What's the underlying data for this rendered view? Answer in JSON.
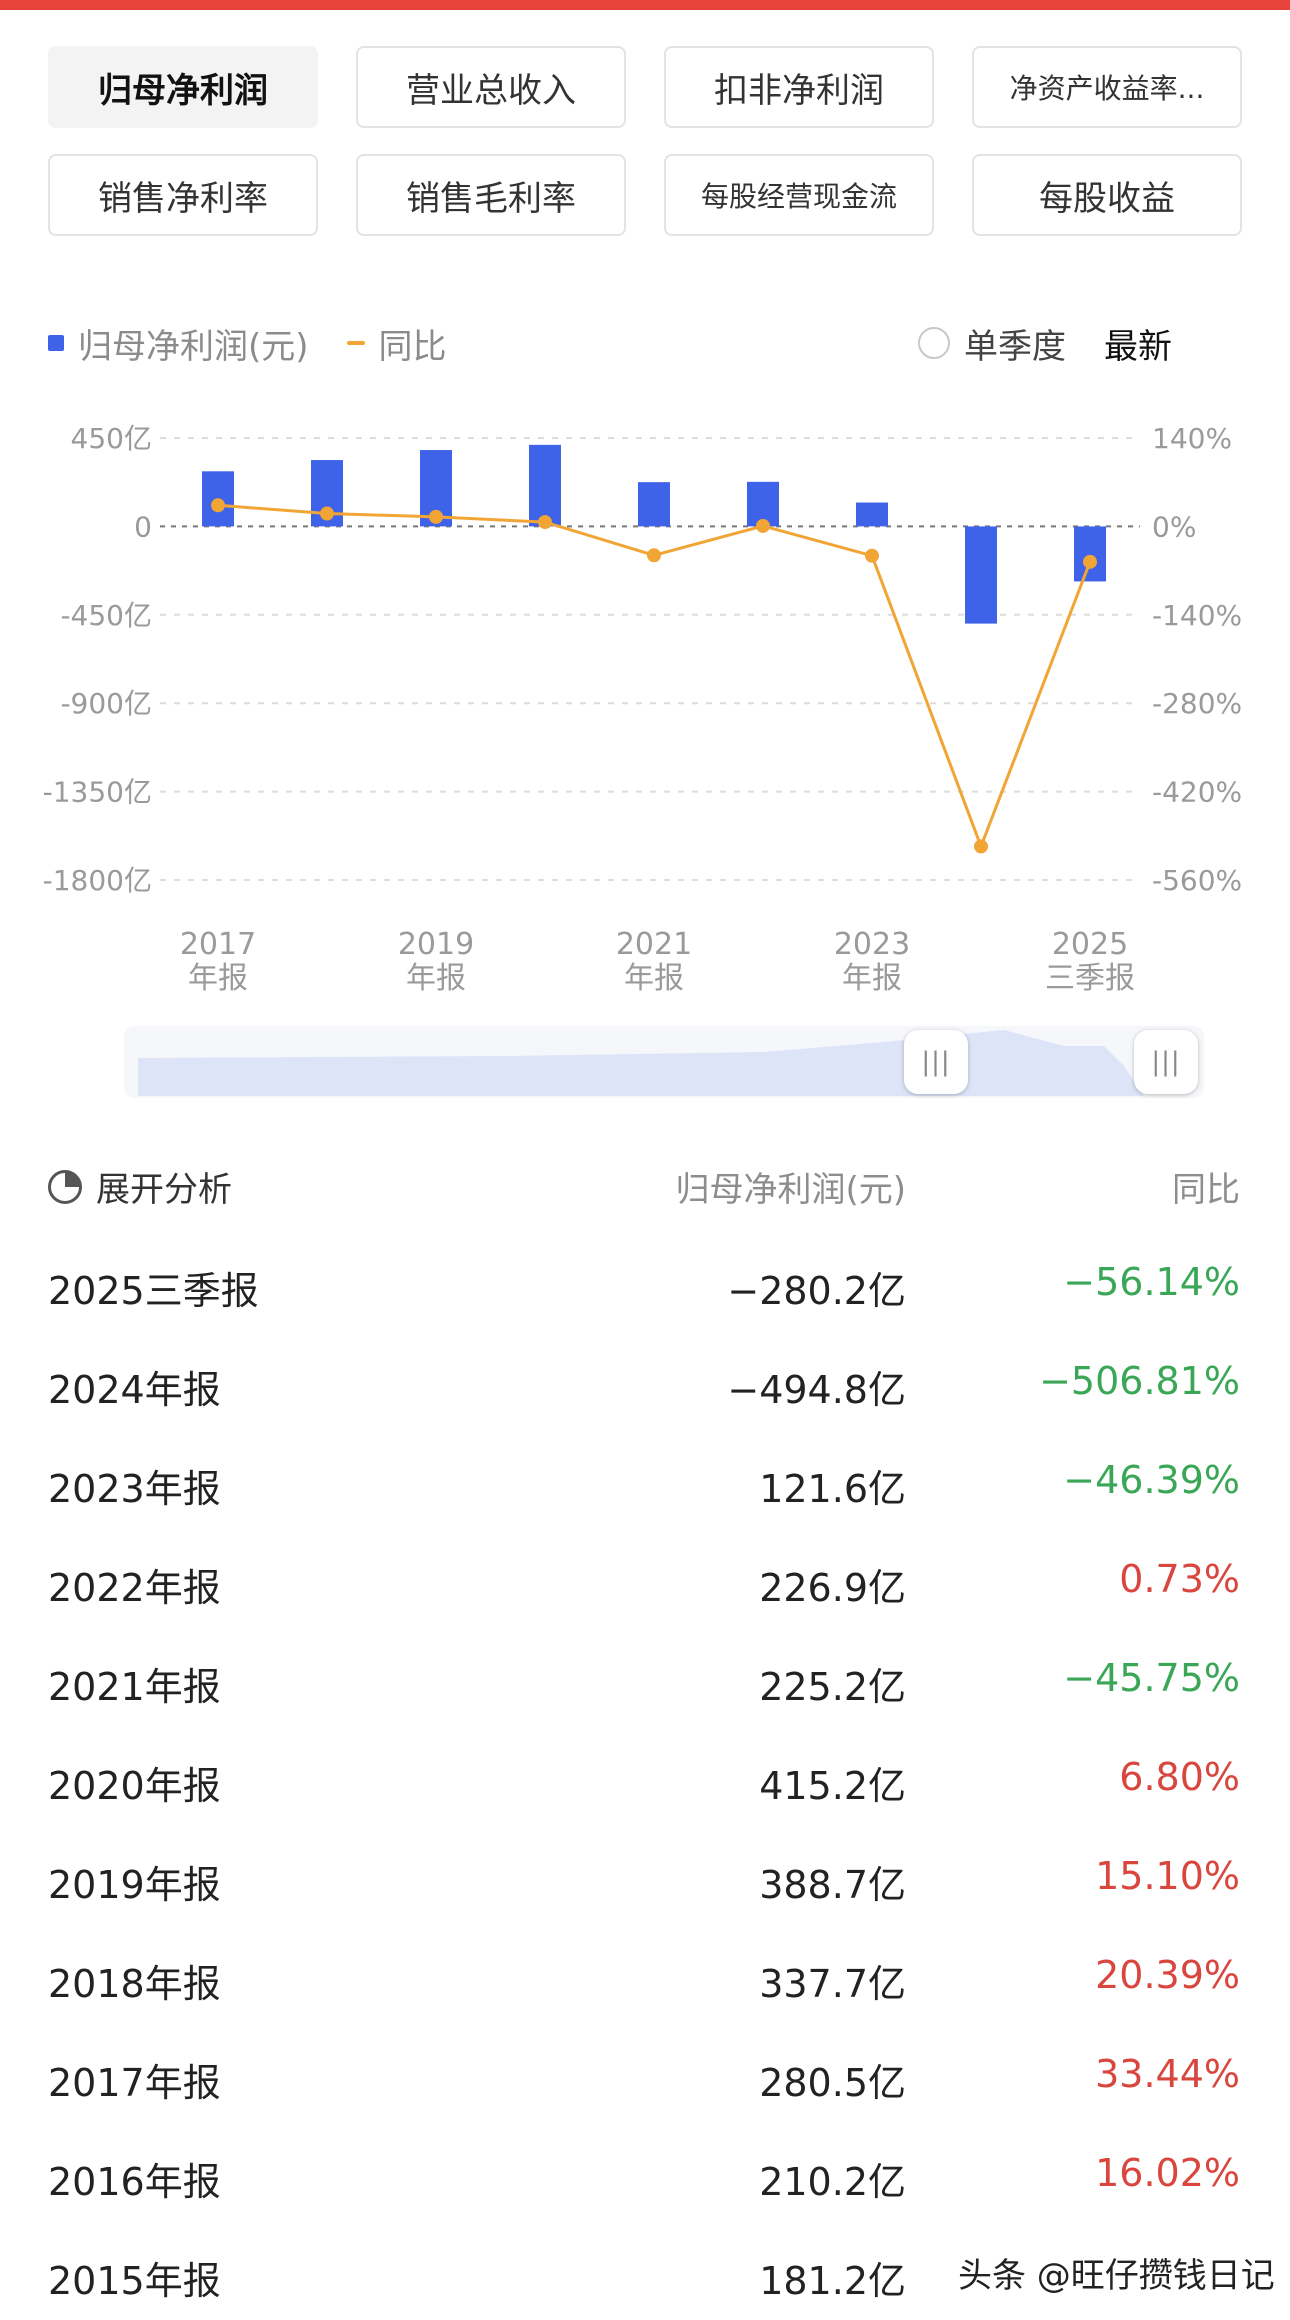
{
  "tabs": [
    {
      "label": "归母净利润",
      "active": true
    },
    {
      "label": "营业总收入",
      "active": false
    },
    {
      "label": "扣非净利润",
      "active": false
    },
    {
      "label": "净资产收益率...",
      "active": false,
      "small": true
    },
    {
      "label": "销售净利率",
      "active": false
    },
    {
      "label": "销售毛利率",
      "active": false
    },
    {
      "label": "每股经营现金流",
      "active": false,
      "small": true
    },
    {
      "label": "每股收益",
      "active": false
    }
  ],
  "legend": {
    "bar_label": "归母净利润(元)",
    "line_label": "同比",
    "single_quarter": "单季度",
    "latest": "最新"
  },
  "chart_data": {
    "type": "bar+line",
    "categories": [
      "2017年报",
      "2018年报",
      "2019年报",
      "2020年报",
      "2021年报",
      "2022年报",
      "2023年报",
      "2024年报",
      "2025三季报"
    ],
    "x_tick_labels": [
      {
        "year": "2017",
        "label": "年报"
      },
      {
        "year": "2019",
        "label": "年报"
      },
      {
        "year": "2021",
        "label": "年报"
      },
      {
        "year": "2023",
        "label": "年报"
      },
      {
        "year": "2025",
        "label": "三季报"
      }
    ],
    "series": [
      {
        "name": "归母净利润(元)",
        "type": "bar",
        "color": "#3f63e8",
        "unit": "亿",
        "values": [
          280.5,
          337.7,
          388.7,
          415.2,
          225.2,
          226.9,
          121.6,
          -494.8,
          -280.2
        ]
      },
      {
        "name": "同比",
        "type": "line",
        "color": "#f0a535",
        "unit": "%",
        "values": [
          33.44,
          20.39,
          15.1,
          6.8,
          -45.75,
          0.73,
          -46.39,
          -506.81,
          -56.14
        ]
      }
    ],
    "y_left": {
      "ticks": [
        "450亿",
        "0",
        "-450亿",
        "-900亿",
        "-1350亿",
        "-1800亿"
      ],
      "range": [
        -1800,
        450
      ]
    },
    "y_right": {
      "ticks": [
        "140%",
        "0%",
        "-140%",
        "-280%",
        "-420%",
        "-560%"
      ],
      "range": [
        -560,
        140
      ]
    },
    "grid": true
  },
  "slider": {
    "handle_glyph": "|||"
  },
  "table": {
    "header": {
      "expand": "展开分析",
      "col_value": "归母净利润(元)",
      "col_yoy": "同比"
    },
    "rows": [
      {
        "period": "2025三季报",
        "value": "−280.2亿",
        "yoy": "−56.14%",
        "dir": "down"
      },
      {
        "period": "2024年报",
        "value": "−494.8亿",
        "yoy": "−506.81%",
        "dir": "down"
      },
      {
        "period": "2023年报",
        "value": "121.6亿",
        "yoy": "−46.39%",
        "dir": "down"
      },
      {
        "period": "2022年报",
        "value": "226.9亿",
        "yoy": "0.73%",
        "dir": "up"
      },
      {
        "period": "2021年报",
        "value": "225.2亿",
        "yoy": "−45.75%",
        "dir": "down"
      },
      {
        "period": "2020年报",
        "value": "415.2亿",
        "yoy": "6.80%",
        "dir": "up"
      },
      {
        "period": "2019年报",
        "value": "388.7亿",
        "yoy": "15.10%",
        "dir": "up"
      },
      {
        "period": "2018年报",
        "value": "337.7亿",
        "yoy": "20.39%",
        "dir": "up"
      },
      {
        "period": "2017年报",
        "value": "280.5亿",
        "yoy": "33.44%",
        "dir": "up"
      },
      {
        "period": "2016年报",
        "value": "210.2亿",
        "yoy": "16.02%",
        "dir": "up"
      },
      {
        "period": "2015年报",
        "value": "181.2亿",
        "yoy": "",
        "dir": "up"
      }
    ]
  },
  "watermark": "头条 @旺仔攒钱日记",
  "colors": {
    "accent_red": "#e8443b",
    "up": "#d9463e",
    "down": "#3aa757",
    "bar": "#3f63e8",
    "line": "#f0a535"
  }
}
